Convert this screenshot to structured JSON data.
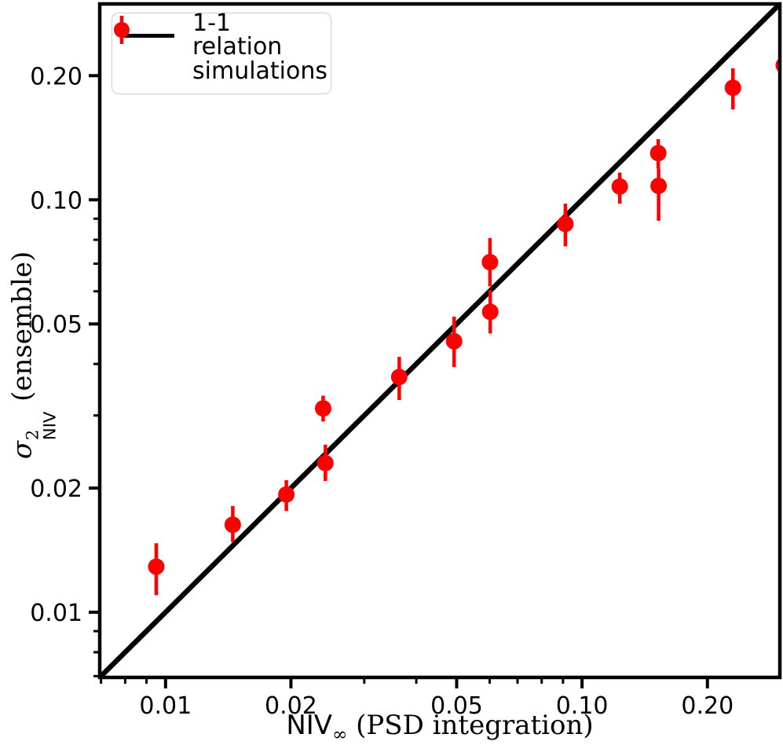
{
  "figure": {
    "background": "#ffffff",
    "marker_color": "#ff0000",
    "line_color": "#000000"
  },
  "legend": {
    "position": "upper left",
    "items": [
      {
        "swatch": "black-line",
        "label": "1-1 relation"
      },
      {
        "swatch": "red-errorbar-marker",
        "label": "simulations"
      }
    ]
  },
  "axes": {
    "xlabel": {
      "main": "NIV",
      "sub": "∞",
      "rest": " (PSD integration)"
    },
    "ylabel": {
      "sigma": "σ",
      "sup": "2",
      "sub": "NIV",
      "rest": " (ensemble)"
    }
  },
  "chart_data": {
    "type": "scatter",
    "title": "",
    "xlabel": "NIV∞ (PSD integration)",
    "ylabel": "σ²_NIV (ensemble)",
    "x_scale": "log",
    "y_scale": "log",
    "xlim": [
      0.00695,
      0.2985
    ],
    "ylim": [
      0.00695,
      0.2985
    ],
    "grid": false,
    "legend_position": "upper left",
    "x_major_ticks": [
      0.01,
      0.02,
      0.05,
      0.1,
      0.2
    ],
    "x_major_tick_labels": [
      "0.01",
      "0.02",
      "0.05",
      "0.10",
      "0.20"
    ],
    "x_minor_ticks": [
      0.007,
      0.008,
      0.009,
      0.03,
      0.04,
      0.06,
      0.07,
      0.08,
      0.09
    ],
    "y_major_ticks": [
      0.01,
      0.02,
      0.05,
      0.1,
      0.2
    ],
    "y_major_tick_labels": [
      "0.01",
      "0.02",
      "0.05",
      "0.10",
      "0.20"
    ],
    "y_minor_ticks": [
      0.007,
      0.008,
      0.009,
      0.03,
      0.04,
      0.06,
      0.07,
      0.08,
      0.09
    ],
    "one_to_one_line": {
      "name": "1-1 relation",
      "from": 0.00695,
      "to": 0.2985
    },
    "series": [
      {
        "name": "simulations",
        "color": "#ff0000",
        "points": [
          {
            "x": 0.0095,
            "y": 0.0129,
            "y_lo": 0.011,
            "y_hi": 0.0147
          },
          {
            "x": 0.0145,
            "y": 0.0163,
            "y_lo": 0.0148,
            "y_hi": 0.0181
          },
          {
            "x": 0.0195,
            "y": 0.0193,
            "y_lo": 0.0176,
            "y_hi": 0.0209
          },
          {
            "x": 0.0239,
            "y": 0.0312,
            "y_lo": 0.029,
            "y_hi": 0.0335
          },
          {
            "x": 0.0242,
            "y": 0.023,
            "y_lo": 0.0208,
            "y_hi": 0.0255
          },
          {
            "x": 0.0364,
            "y": 0.0372,
            "y_lo": 0.0327,
            "y_hi": 0.0416
          },
          {
            "x": 0.0493,
            "y": 0.0454,
            "y_lo": 0.0393,
            "y_hi": 0.0521
          },
          {
            "x": 0.0601,
            "y": 0.0706,
            "y_lo": 0.0617,
            "y_hi": 0.0808
          },
          {
            "x": 0.0602,
            "y": 0.0535,
            "y_lo": 0.0474,
            "y_hi": 0.0604
          },
          {
            "x": 0.0912,
            "y": 0.0874,
            "y_lo": 0.0771,
            "y_hi": 0.0979
          },
          {
            "x": 0.1232,
            "y": 0.1077,
            "y_lo": 0.0979,
            "y_hi": 0.1164
          },
          {
            "x": 0.1524,
            "y": 0.1298,
            "y_lo": 0.119,
            "y_hi": 0.1403
          },
          {
            "x": 0.1527,
            "y": 0.1081,
            "y_lo": 0.089,
            "y_hi": 0.119
          },
          {
            "x": 0.2303,
            "y": 0.1869,
            "y_lo": 0.1656,
            "y_hi": 0.2084
          },
          {
            "x": 0.305,
            "y": 0.212,
            "y_lo": 0.19,
            "y_hi": 0.238
          }
        ]
      }
    ]
  }
}
